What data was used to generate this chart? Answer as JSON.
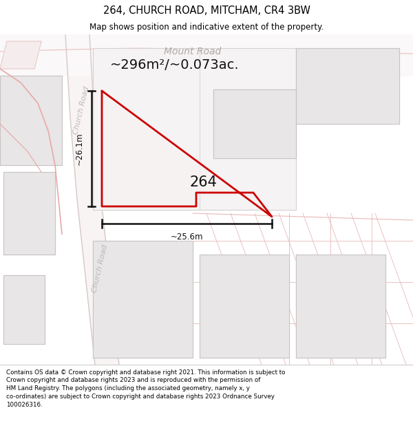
{
  "title": "264, CHURCH ROAD, MITCHAM, CR4 3BW",
  "subtitle": "Map shows position and indicative extent of the property.",
  "area_text": "~296m²/~0.073ac.",
  "label_264": "264",
  "dim_vertical": "~26.1m",
  "dim_horizontal": "~25.6m",
  "road_label_top": "Mount Road",
  "road_label_left1": "Church Road",
  "road_label_left2": "Church Road",
  "footer_lines": [
    "Contains OS data © Crown copyright and database right 2021. This information is subject to Crown copyright and database rights 2023 and is reproduced with the permission of",
    "HM Land Registry. The polygons (including the associated geometry, namely x, y",
    "co-ordinates) are subject to Crown copyright and database rights 2023 Ordnance Survey",
    "100026316."
  ],
  "bg_color": "#ffffff",
  "map_bg": "#ffffff",
  "plot_fill": "#f0eded",
  "plot_outline": "#cc0000",
  "road_fill": "#f5f0f0",
  "road_line": "#e8c0c0",
  "gray_fill": "#e8e6e6",
  "gray_line": "#c8c4c4",
  "title_color": "#000000",
  "footer_color": "#000000",
  "dim_color": "#333333",
  "road_label_color": "#c0b8b8",
  "mount_road_color": "#b0a8a8"
}
